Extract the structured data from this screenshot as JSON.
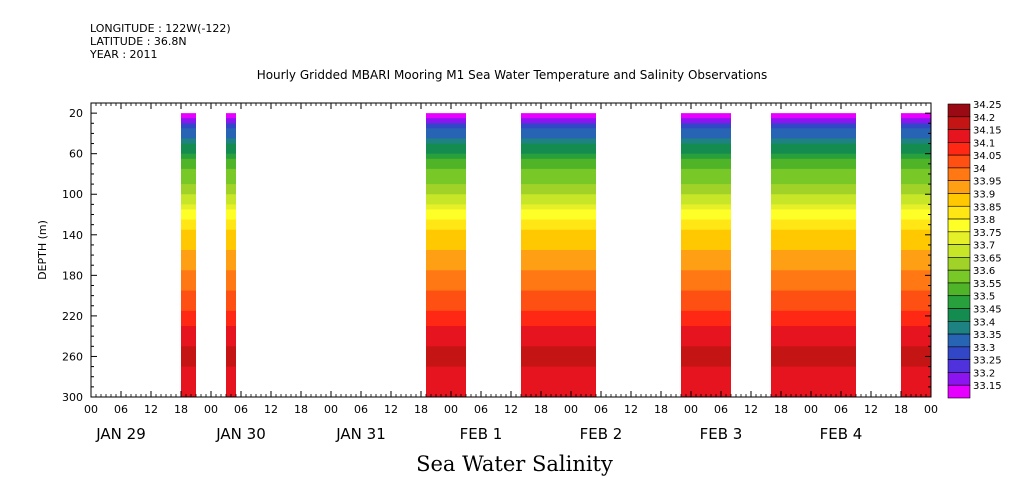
{
  "header": {
    "longitude": "LONGITUDE : 122W(-122)",
    "latitude": "LATITUDE : 36.8N",
    "year": "YEAR : 2011"
  },
  "chart_title": "Hourly Gridded MBARI Mooring M1 Sea Water Temperature and Salinity Observations",
  "footer_title": "Sea Water Salinity",
  "chart_data": {
    "type": "heatmap",
    "title": "Hourly Gridded MBARI Mooring M1 Sea Water Temperature and Salinity Observations",
    "subtitle": "Sea Water Salinity",
    "xlabel": "",
    "ylabel": "DEPTH (m)",
    "ylim": [
      300,
      10
    ],
    "y_ticks": [
      20,
      60,
      100,
      140,
      180,
      220,
      260,
      300
    ],
    "y_inverted": true,
    "x_hour_ticks": [
      "00",
      "06",
      "12",
      "18",
      "00",
      "06",
      "12",
      "18",
      "00",
      "06",
      "12",
      "18",
      "00",
      "06",
      "12",
      "18",
      "00",
      "06",
      "12",
      "18",
      "00",
      "06",
      "12",
      "18",
      "00",
      "06",
      "12",
      "18",
      "00"
    ],
    "x_day_labels": [
      "JAN 29",
      "JAN 30",
      "JAN 31",
      "FEB  1",
      "FEB  2",
      "FEB  3",
      "FEB  4"
    ],
    "x_range_hours": [
      0,
      168
    ],
    "data_segments_hours": [
      [
        18,
        21
      ],
      [
        27,
        29
      ],
      [
        67,
        75
      ],
      [
        86,
        101
      ],
      [
        118,
        128
      ],
      [
        136,
        153
      ],
      [
        162,
        173
      ]
    ],
    "depth_profile": [
      {
        "depth": 20,
        "salinity": 33.15
      },
      {
        "depth": 30,
        "salinity": 33.28
      },
      {
        "depth": 40,
        "salinity": 33.38
      },
      {
        "depth": 50,
        "salinity": 33.45
      },
      {
        "depth": 60,
        "salinity": 33.5
      },
      {
        "depth": 75,
        "salinity": 33.6
      },
      {
        "depth": 90,
        "salinity": 33.65
      },
      {
        "depth": 105,
        "salinity": 33.72
      },
      {
        "depth": 115,
        "salinity": 33.8
      },
      {
        "depth": 130,
        "salinity": 33.88
      },
      {
        "depth": 145,
        "salinity": 33.93
      },
      {
        "depth": 165,
        "salinity": 33.98
      },
      {
        "depth": 185,
        "salinity": 34.02
      },
      {
        "depth": 205,
        "salinity": 34.07
      },
      {
        "depth": 222,
        "salinity": 34.12
      },
      {
        "depth": 240,
        "salinity": 34.18
      },
      {
        "depth": 262,
        "salinity": 34.22
      },
      {
        "depth": 280,
        "salinity": 34.18
      },
      {
        "depth": 300,
        "salinity": 34.15
      }
    ],
    "colorbar": {
      "levels": [
        "34.25",
        "34.2",
        "34.15",
        "34.1",
        "34.05",
        "34",
        "33.95",
        "33.9",
        "33.85",
        "33.8",
        "33.75",
        "33.7",
        "33.65",
        "33.6",
        "33.55",
        "33.5",
        "33.45",
        "33.4",
        "33.35",
        "33.3",
        "33.25",
        "33.2",
        "33.15"
      ],
      "colors": [
        "#9a0a14",
        "#c41414",
        "#e6141e",
        "#ff2814",
        "#ff5014",
        "#ff7814",
        "#ffa014",
        "#ffc800",
        "#ffe614",
        "#ffff28",
        "#e6f028",
        "#c8e628",
        "#a0d228",
        "#78c828",
        "#50b428",
        "#28a03c",
        "#148c50",
        "#1e8282",
        "#2864b4",
        "#3246c8",
        "#5032dc",
        "#8c14f0",
        "#e600ff"
      ]
    },
    "grid": false,
    "legend_position": "right"
  }
}
